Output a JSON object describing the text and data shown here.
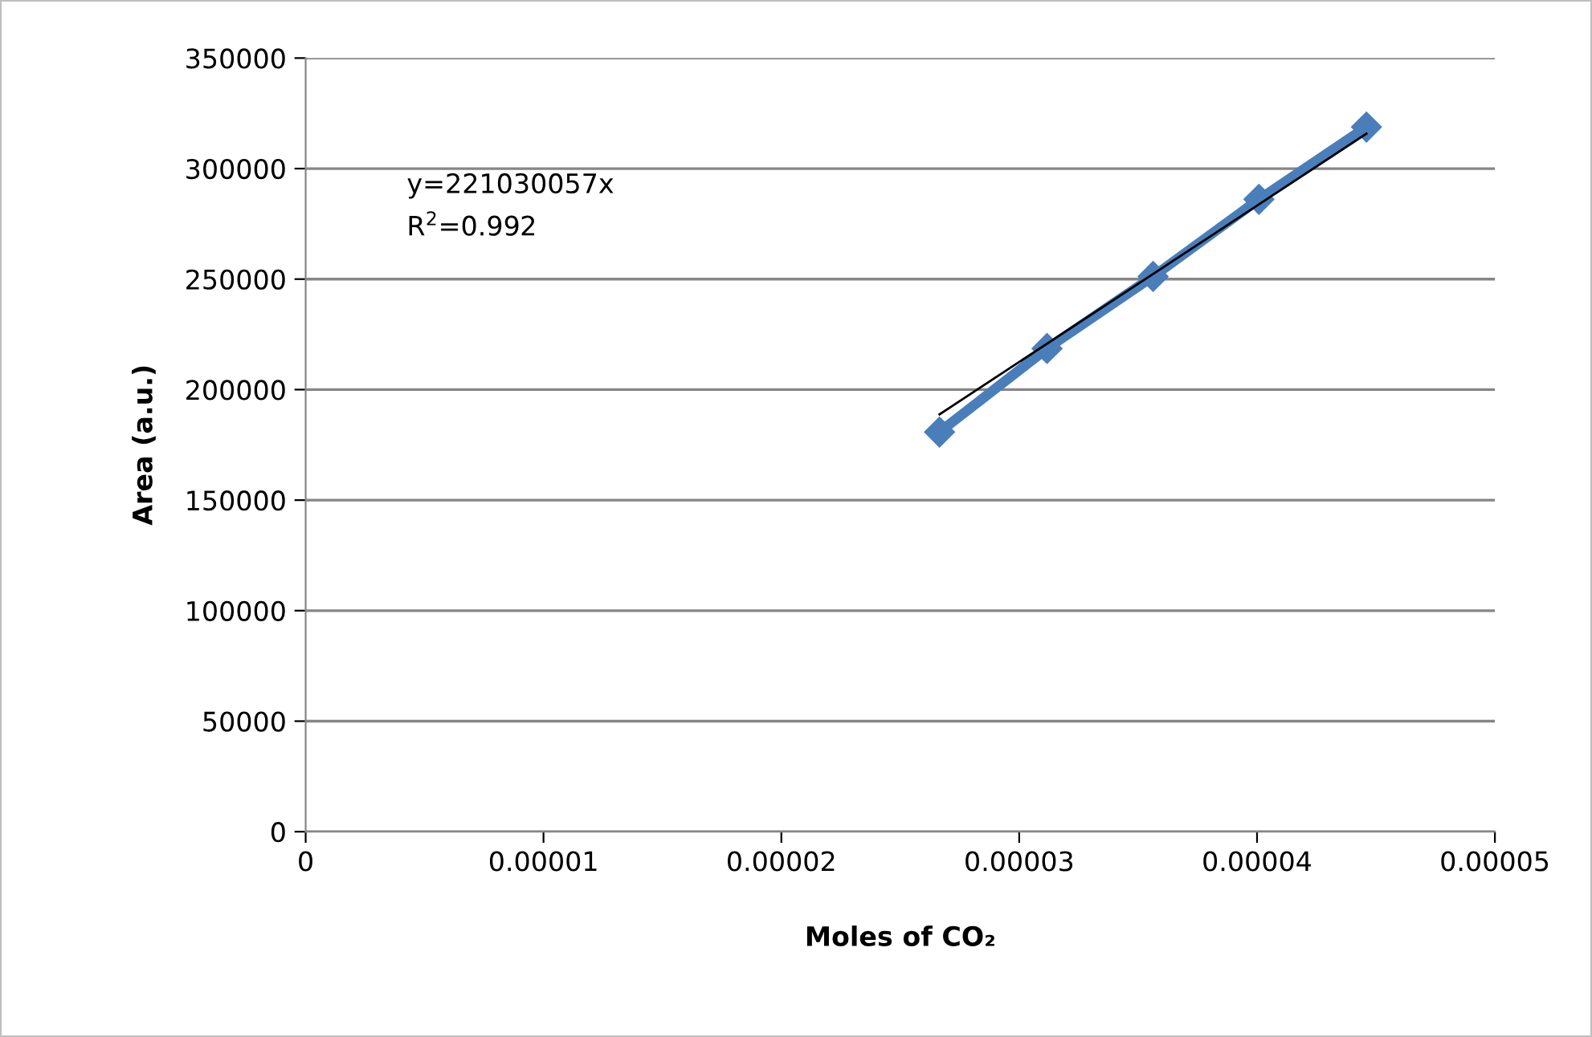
{
  "chart_data": {
    "type": "line",
    "xlabel": "Moles of CO₂",
    "ylabel": "Area (a.u.)",
    "annotations": [
      "y=221030057x",
      "R$^{2}$=0.992"
    ],
    "series": [
      {
        "color": "#4a7ebb",
        "x": [
          2.665e-05,
          3.117e-05,
          3.563e-05,
          4.008e-05,
          4.46e-05
        ],
        "values": [
          180800,
          218600,
          251200,
          286100,
          318800
        ],
        "marker": "diamond"
      },
      {
        "color": "#000000",
        "x": [
          2.665e-05,
          4.46e-05
        ],
        "values": [
          188800,
          315800
        ],
        "marker": "none"
      }
    ],
    "xlim": [
      0,
      5e-05
    ],
    "xticks": [
      0,
      {
        "value": 1e-05,
        "label": "0.00001"
      },
      {
        "value": 2e-05,
        "label": "0.00002"
      },
      {
        "value": 3e-05,
        "label": "0.00003"
      },
      {
        "value": 4e-05,
        "label": "0.00004"
      },
      {
        "value": 5e-05,
        "label": "0.00005"
      }
    ],
    "ylim": [
      0,
      350000
    ],
    "yticks": [
      0,
      50000,
      100000,
      150000,
      200000,
      250000,
      300000,
      350000
    ],
    "grid": "y",
    "legend": false
  }
}
